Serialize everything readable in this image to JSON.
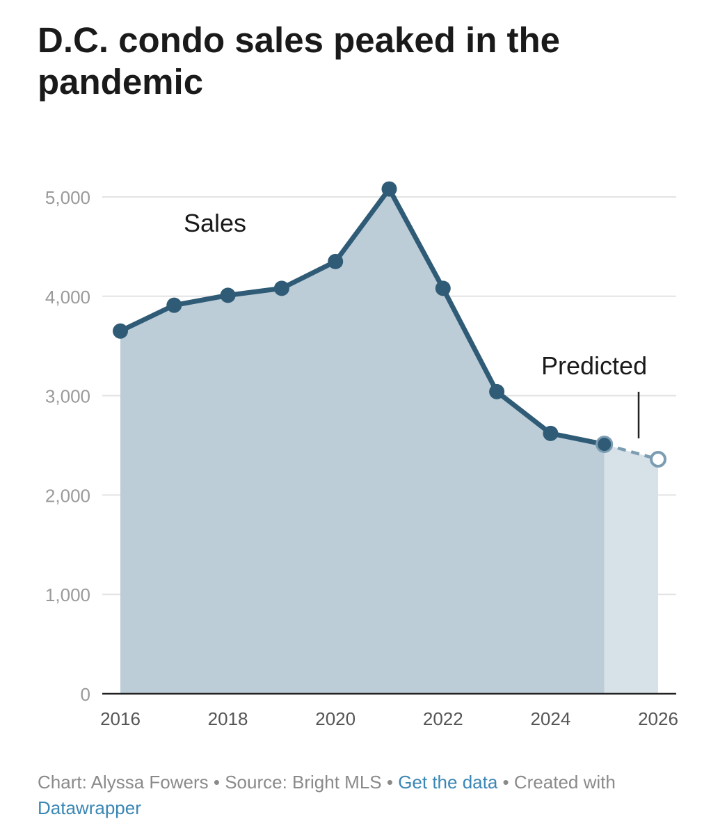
{
  "title": "D.C. condo sales peaked in the pandemic",
  "colors": {
    "line": "#2f5b77",
    "area": "#bccdd7",
    "area_predicted": "#d6e1e8",
    "predicted_line": "#7c9db1",
    "grid": "#e3e3e3",
    "baseline": "#222222",
    "link": "#3a86b5"
  },
  "chart_data": {
    "type": "area",
    "x": [
      2016,
      2017,
      2018,
      2019,
      2020,
      2021,
      2022,
      2023,
      2024,
      2025,
      2026
    ],
    "series": [
      {
        "name": "Sales",
        "values": [
          3650,
          3910,
          4010,
          4080,
          4350,
          5080,
          4080,
          3040,
          2620,
          2510,
          2360
        ],
        "predicted_from_index": 9
      }
    ],
    "annotations": {
      "series_label": "Sales",
      "predicted_label": "Predicted"
    },
    "y_ticks": [
      0,
      1000,
      2000,
      3000,
      4000,
      5000
    ],
    "y_tick_labels": [
      "0",
      "1,000",
      "2,000",
      "3,000",
      "4,000",
      "5,000"
    ],
    "x_ticks": [
      2016,
      2018,
      2020,
      2022,
      2024,
      2026
    ],
    "x_tick_labels": [
      "2016",
      "2018",
      "2020",
      "2022",
      "2024",
      "2026"
    ],
    "xlim": [
      2016,
      2026
    ],
    "ylim": [
      0,
      5000
    ],
    "grid": true,
    "xlabel": "",
    "ylabel": ""
  },
  "footer": {
    "chart_credit": "Chart: Alyssa Fowers",
    "sep1": " • ",
    "source": "Source: Bright MLS",
    "sep2": " • ",
    "get_data": "Get the data",
    "sep3": " • ",
    "created_with": "Created with",
    "datawrapper": "Datawrapper"
  }
}
